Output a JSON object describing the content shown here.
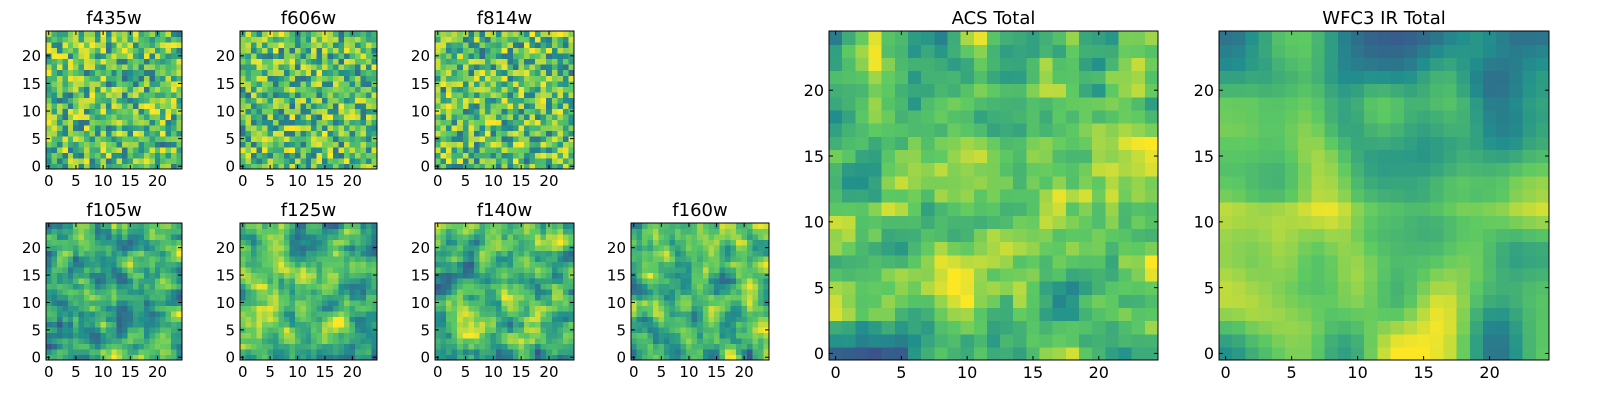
{
  "chart_data": [
    {
      "type": "heatmap",
      "title": "f435w",
      "size": 25,
      "xlabel": "",
      "ylabel": "",
      "xlim": [
        0,
        24
      ],
      "ylim": [
        0,
        24
      ],
      "xticks": [
        0,
        5,
        10,
        15,
        20
      ],
      "yticks": [
        0,
        5,
        10,
        15,
        20
      ],
      "colormap": "viridis",
      "seed": 11,
      "style": "noise"
    },
    {
      "type": "heatmap",
      "title": "f606w",
      "size": 25,
      "xlabel": "",
      "ylabel": "",
      "xlim": [
        0,
        24
      ],
      "ylim": [
        0,
        24
      ],
      "xticks": [
        0,
        5,
        10,
        15,
        20
      ],
      "yticks": [
        0,
        5,
        10,
        15,
        20
      ],
      "colormap": "viridis",
      "seed": 23,
      "style": "noise"
    },
    {
      "type": "heatmap",
      "title": "f814w",
      "size": 25,
      "xlabel": "",
      "ylabel": "",
      "xlim": [
        0,
        24
      ],
      "ylim": [
        0,
        24
      ],
      "xticks": [
        0,
        5,
        10,
        15,
        20
      ],
      "yticks": [
        0,
        5,
        10,
        15,
        20
      ],
      "colormap": "viridis",
      "seed": 37,
      "style": "noise"
    },
    {
      "type": "heatmap",
      "title": "f105w",
      "size": 25,
      "xlabel": "",
      "ylabel": "",
      "xlim": [
        0,
        24
      ],
      "ylim": [
        0,
        24
      ],
      "xticks": [
        0,
        5,
        10,
        15,
        20
      ],
      "yticks": [
        0,
        5,
        10,
        15,
        20
      ],
      "colormap": "viridis",
      "seed": 41,
      "style": "streaky"
    },
    {
      "type": "heatmap",
      "title": "f125w",
      "size": 25,
      "xlabel": "",
      "ylabel": "",
      "xlim": [
        0,
        24
      ],
      "ylim": [
        0,
        24
      ],
      "xticks": [
        0,
        5,
        10,
        15,
        20
      ],
      "yticks": [
        0,
        5,
        10,
        15,
        20
      ],
      "colormap": "viridis",
      "seed": 53,
      "style": "streaky"
    },
    {
      "type": "heatmap",
      "title": "f140w",
      "size": 25,
      "xlabel": "",
      "ylabel": "",
      "xlim": [
        0,
        24
      ],
      "ylim": [
        0,
        24
      ],
      "xticks": [
        0,
        5,
        10,
        15,
        20
      ],
      "yticks": [
        0,
        5,
        10,
        15,
        20
      ],
      "colormap": "viridis",
      "seed": 67,
      "style": "streaky"
    },
    {
      "type": "heatmap",
      "title": "f160w",
      "size": 25,
      "xlabel": "",
      "ylabel": "",
      "xlim": [
        0,
        24
      ],
      "ylim": [
        0,
        24
      ],
      "xticks": [
        0,
        5,
        10,
        15,
        20
      ],
      "yticks": [
        0,
        5,
        10,
        15,
        20
      ],
      "colormap": "viridis",
      "seed": 79,
      "style": "streaky"
    },
    {
      "type": "heatmap",
      "title": "ACS Total",
      "size": 25,
      "xlabel": "",
      "ylabel": "",
      "xlim": [
        0,
        24
      ],
      "ylim": [
        0,
        24
      ],
      "xticks": [
        0,
        5,
        10,
        15,
        20
      ],
      "yticks": [
        0,
        5,
        10,
        15,
        20
      ],
      "colormap": "viridis",
      "seed": 97,
      "style": "acs"
    },
    {
      "type": "heatmap",
      "title": "WFC3 IR Total",
      "size": 25,
      "xlabel": "",
      "ylabel": "",
      "xlim": [
        0,
        24
      ],
      "ylim": [
        0,
        24
      ],
      "xticks": [
        0,
        5,
        10,
        15,
        20
      ],
      "yticks": [
        0,
        5,
        10,
        15,
        20
      ],
      "colormap": "viridis",
      "seed": 131,
      "style": "ir"
    }
  ],
  "colors": {
    "viridis": [
      "#440154",
      "#3b528b",
      "#21908d",
      "#5dc963",
      "#fde725"
    ]
  }
}
